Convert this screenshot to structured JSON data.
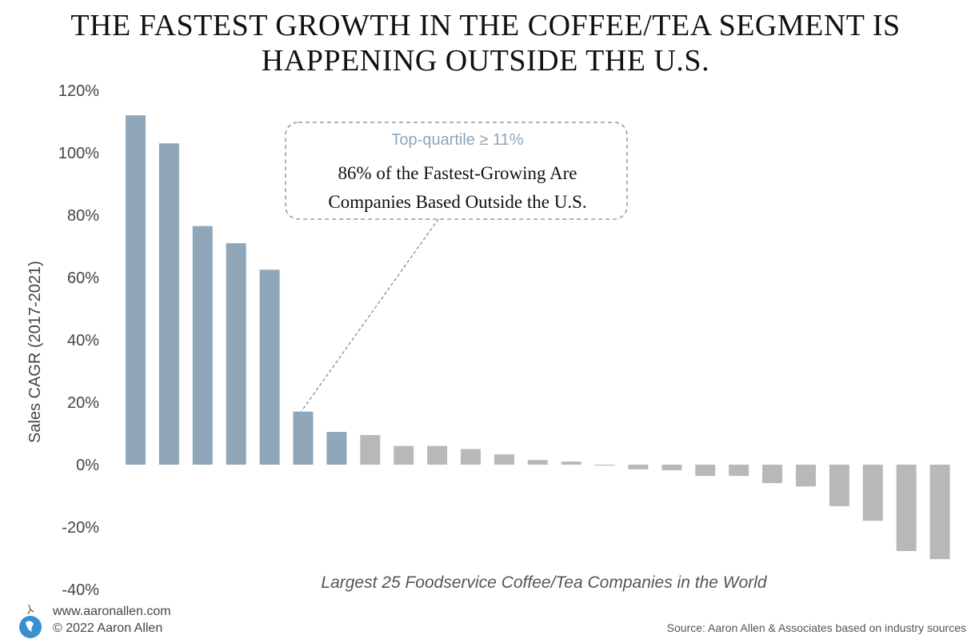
{
  "title": "THE FASTEST GROWTH IN THE COFFEE/TEA SEGMENT IS HAPPENING OUTSIDE THE U.S.",
  "title_lines": [
    "THE FASTEST GROWTH IN THE COFFEE/TEA SEGMENT IS",
    "HAPPENING OUTSIDE THE U.S."
  ],
  "chart_data": {
    "type": "bar",
    "title": "THE FASTEST GROWTH IN THE COFFEE/TEA SEGMENT IS HAPPENING OUTSIDE THE U.S.",
    "xlabel": "Largest 25 Foodservice Coffee/Tea Companies in the World",
    "ylabel": "Sales CAGR (2017-2021)",
    "ylim": [
      -40,
      120
    ],
    "yticks": [
      "120%",
      "100%",
      "80%",
      "60%",
      "40%",
      "20%",
      "0%",
      "-20%",
      "-40%"
    ],
    "ytick_values": [
      120,
      100,
      80,
      60,
      40,
      20,
      0,
      -20,
      -40
    ],
    "grid": false,
    "values": [
      112,
      103,
      76.5,
      71,
      62.5,
      17,
      10.5,
      9.5,
      6,
      6,
      5,
      3.3,
      1.5,
      1,
      -0.3,
      -1.5,
      -1.8,
      -3.6,
      -3.6,
      -5.9,
      -7,
      -13.3,
      -18,
      -27.7,
      -30.3
    ],
    "top_quartile_count": 7,
    "colors": {
      "top_quartile": "#8fa7b8",
      "other": "#b8b8b8"
    },
    "annotation": {
      "header": "Top-quartile ≥ 11%",
      "text_lines": [
        "86% of the Fastest-Growing Are",
        "Companies Based Outside the U.S."
      ]
    }
  },
  "footer": {
    "website": "www.aaronallen.com",
    "copyright": "© 2022 Aaron Allen",
    "source": "Source: Aaron Allen & Associates based on industry sources"
  }
}
